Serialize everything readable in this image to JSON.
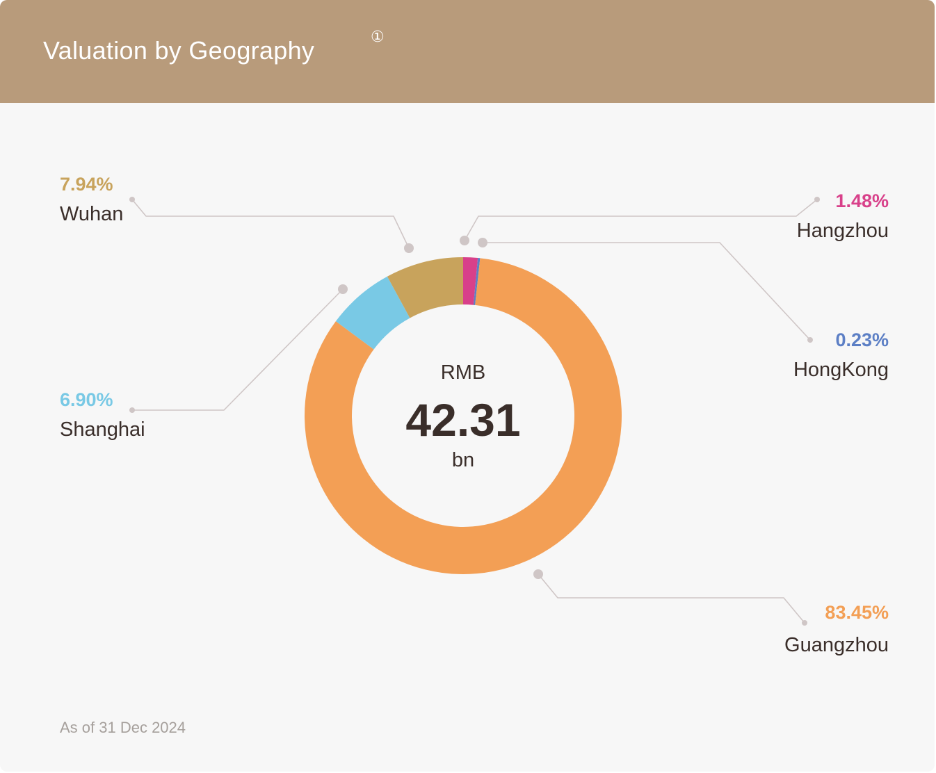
{
  "header": {
    "title": "Valuation by Geography",
    "note_marker": "①"
  },
  "center": {
    "currency": "RMB",
    "total": "42.31",
    "unit": "bn"
  },
  "footnote": "As of 31 Dec 2024",
  "colors": {
    "header_bg": "#b89b7b",
    "card_bg": "#f7f7f7",
    "leader_line": "#cfc6c6",
    "text_dark": "#3a2e2a"
  },
  "chart_data": {
    "type": "pie",
    "variant": "donut",
    "total_label": "RMB 42.31 bn",
    "slices": [
      {
        "name": "Guangzhou",
        "label": "83.45%",
        "value": 83.45,
        "color": "#f39f55"
      },
      {
        "name": "Shanghai",
        "label": "6.90%",
        "value": 6.9,
        "color": "#79c9e5"
      },
      {
        "name": "Wuhan",
        "label": "7.94%",
        "value": 7.94,
        "color": "#c8a35c"
      },
      {
        "name": "Hangzhou",
        "label": "1.48%",
        "value": 1.48,
        "color": "#d8408a"
      },
      {
        "name": "HongKong",
        "label": "0.23%",
        "value": 0.23,
        "color": "#5c7fc5"
      }
    ]
  }
}
